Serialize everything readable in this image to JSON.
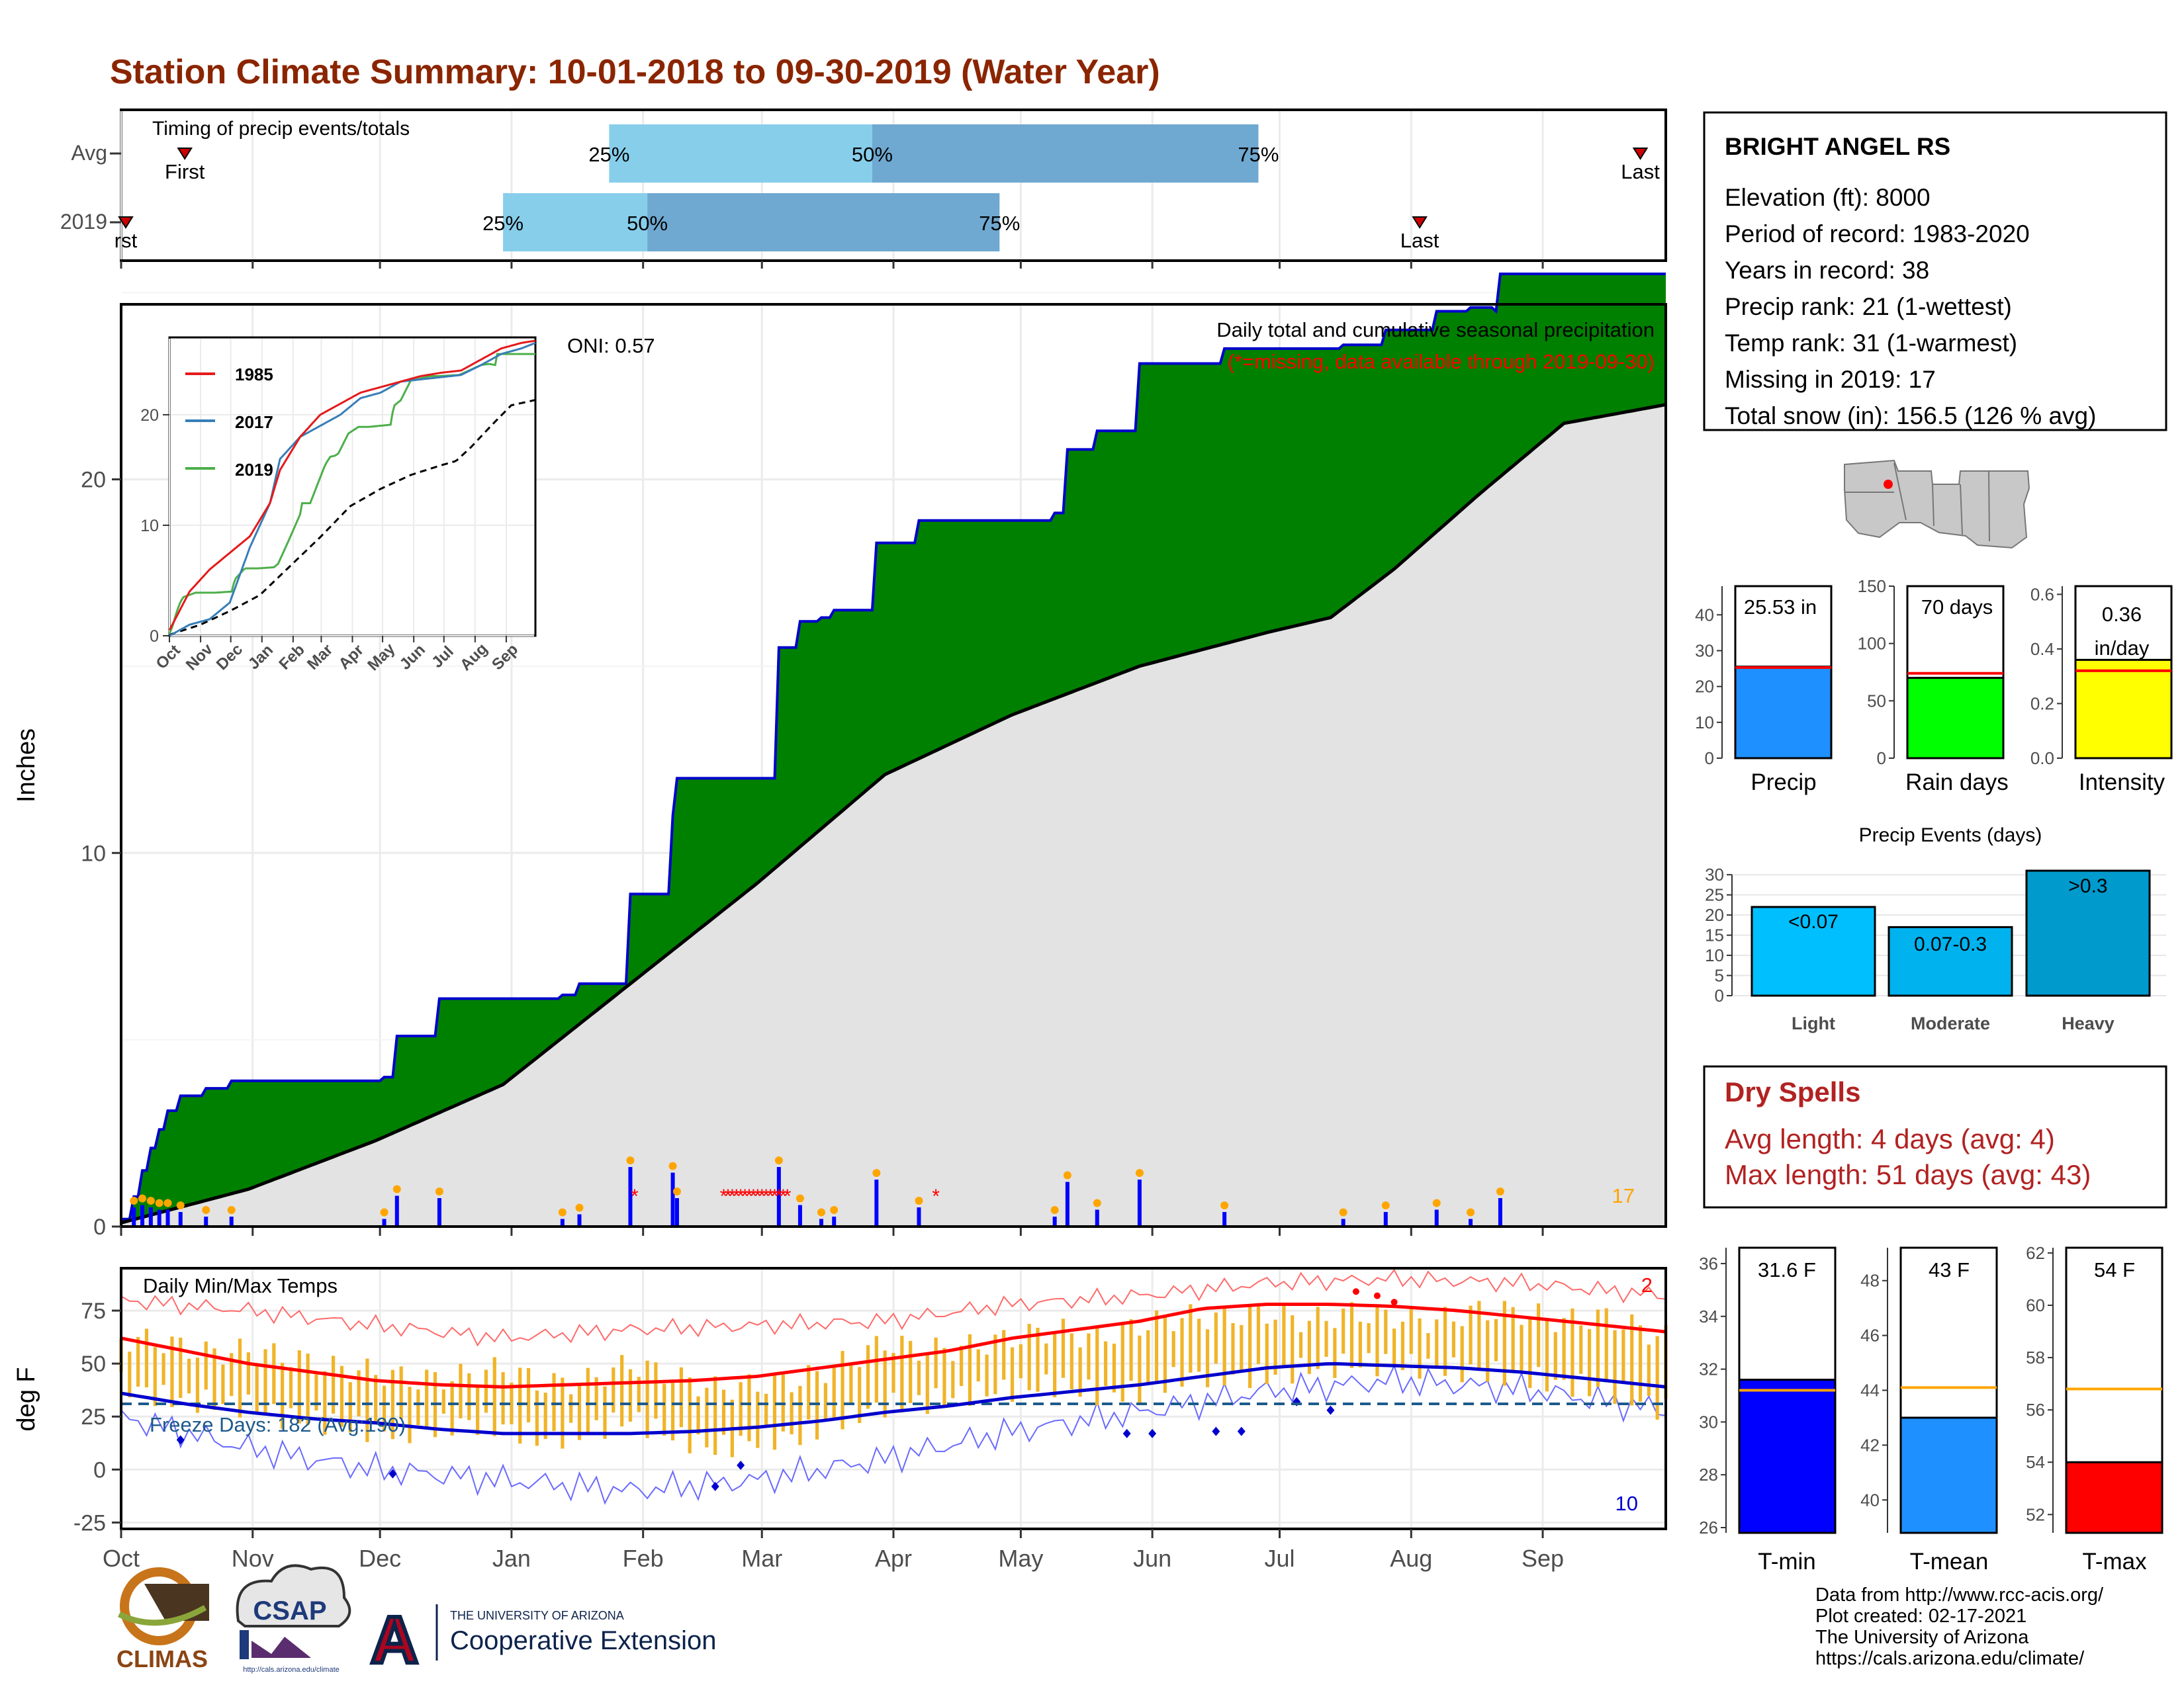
{
  "title": "Station Climate Summary: 10-01-2018 to 09-30-2019 (Water Year)",
  "colors": {
    "title": "#8b2500",
    "accent_red": "#ff0000",
    "green_fill": "#008000",
    "blue_line": "#0000cd",
    "gray_fill": "#e3e3e3",
    "orange": "#ffa500",
    "light_blue": "#87ceeb",
    "steel_blue": "#6fa8d0",
    "temp_bar": "#f0b429",
    "dry_spell_red": "#b22222"
  },
  "months": [
    "Oct",
    "Nov",
    "Dec",
    "Jan",
    "Feb",
    "Mar",
    "Apr",
    "May",
    "Jun",
    "Jul",
    "Aug",
    "Sep"
  ],
  "timing": {
    "title": "Timing of precip events/totals",
    "rows": [
      {
        "label": "Avg",
        "first_day": 15,
        "last_day": 358,
        "p25_day": 115,
        "p50_day": 177,
        "p75_day": 268,
        "first_label": "First",
        "last_label": "Last",
        "p25_label": "25%",
        "p50_label": "50%",
        "p75_label": "75%"
      },
      {
        "label": "2019",
        "first_day": 0,
        "last_day": 306,
        "p25_day": 90,
        "p50_day": 124,
        "p75_day": 207,
        "first_label": "rst",
        "last_label": "Last",
        "p25_label": "25%",
        "p50_label": "50%",
        "p75_label": "75%"
      }
    ]
  },
  "precip_panel": {
    "ylabel": "Inches",
    "title": "Daily total and cumulative seasonal precipitation",
    "subtitle": "(*=missing, data available through 2019-09-30)",
    "oni": "ONI: 0.57",
    "missing_count": "17",
    "yticks": [
      "0",
      "10",
      "20"
    ],
    "inset_legend": [
      "1985",
      "2017",
      "2019"
    ],
    "inset_yticks": [
      "0",
      "10",
      "20"
    ],
    "inset_xticks": [
      "Oct",
      "Nov",
      "Dec",
      "Jan",
      "Feb",
      "Mar",
      "Apr",
      "May",
      "Jun",
      "Jul",
      "Aug",
      "Sep"
    ]
  },
  "temp_panel": {
    "ylabel": "deg F",
    "title": "Daily Min/Max Temps",
    "freeze_label": "Freeze Days: 182 (Avg:190)",
    "count_max": "2",
    "count_min": "10",
    "yticks": [
      "-25",
      "0",
      "25",
      "50",
      "75"
    ]
  },
  "station": {
    "name": "BRIGHT ANGEL RS",
    "lines": [
      "Elevation (ft): 8000",
      "Period of record: 1983-2020",
      "Years in record: 38",
      "Precip rank: 21 (1-wettest)",
      "Temp rank: 31 (1-warmest)",
      "Missing in 2019: 17",
      "Total snow (in): 156.5 (126 % avg)"
    ]
  },
  "summary_bars": [
    {
      "label": "Precip",
      "value_text": "25.53 in",
      "value": 25.53,
      "avg": 25.3,
      "ymax": 48,
      "ticks": [
        "0",
        "10",
        "20",
        "30",
        "40"
      ],
      "color": "#1e90ff"
    },
    {
      "label": "Rain days",
      "value_text": "70 days",
      "value": 70,
      "avg": 74,
      "ymax": 150,
      "ticks": [
        "0",
        "50",
        "100",
        "150"
      ],
      "color": "#00ff00"
    },
    {
      "label": "Intensity",
      "value_text_1": "0.36",
      "value_text_2": "in/day",
      "value": 0.36,
      "avg": 0.32,
      "ymax": 0.63,
      "ticks": [
        "0.0",
        "0.2",
        "0.4",
        "0.6"
      ],
      "color": "#ffff00"
    }
  ],
  "events": {
    "title": "Precip Events (days)",
    "ticks": [
      "0",
      "5",
      "10",
      "15",
      "20",
      "25",
      "30"
    ],
    "bars": [
      {
        "label": "Light",
        "inner": "<0.07",
        "value": 22,
        "color": "#00bfff"
      },
      {
        "label": "Moderate",
        "inner": "0.07-0.3",
        "value": 17,
        "color": "#00b2ee"
      },
      {
        "label": "Heavy",
        "inner": ">0.3",
        "value": 31,
        "color": "#009acd"
      }
    ]
  },
  "dry_spells": {
    "title": "Dry Spells",
    "avg": "Avg length: 4 days (avg: 4)",
    "max": "Max length: 51 days (avg: 43)"
  },
  "temp_bars": [
    {
      "label": "T-min",
      "value_text": "31.6 F",
      "value": 31.6,
      "avg": 31.2,
      "ymin": 25.8,
      "ymax": 36.6,
      "ticks": [
        "26",
        "28",
        "30",
        "32",
        "34",
        "36"
      ],
      "color": "#0000ff"
    },
    {
      "label": "T-mean",
      "value_text": "43 F",
      "value": 43.0,
      "avg": 44.1,
      "ymin": 38.8,
      "ymax": 49.2,
      "ticks": [
        "40",
        "42",
        "44",
        "46",
        "48"
      ],
      "color": "#1e90ff"
    },
    {
      "label": "T-max",
      "value_text": "54 F",
      "value": 54.0,
      "avg": 56.8,
      "ymin": 51.3,
      "ymax": 62.2,
      "ticks": [
        "52",
        "54",
        "56",
        "58",
        "60",
        "62"
      ],
      "color": "#ff0000"
    }
  ],
  "credits": {
    "line1": "Data from http://www.rcc-acis.org/",
    "line2": "Plot created: 02-17-2021",
    "line3": "The University of Arizona",
    "line4": "https://cals.arizona.edu/climate/"
  },
  "logos": {
    "climas": "CLIMAS",
    "csap": "CSAP",
    "csap_url": "http://cals.arizona.edu/climate",
    "ua_small": "THE UNIVERSITY OF ARIZONA",
    "ua_big": "Cooperative Extension",
    "ua_letter": "A"
  },
  "chart_data": [
    {
      "type": "area",
      "title": "Daily total and cumulative seasonal precipitation",
      "ylabel": "Inches",
      "x_unit": "day of water year (0 = Oct 1)",
      "ylim": [
        0,
        25.5
      ],
      "series": [
        {
          "name": "2019",
          "x": [
            0,
            3,
            5,
            7,
            9,
            11,
            14,
            20,
            26,
            30,
            35,
            40,
            45,
            62,
            65,
            75,
            85,
            88,
            104,
            108,
            120,
            130,
            131,
            140,
            155,
            160,
            165,
            168,
            178,
            188,
            198,
            220,
            223,
            230,
            240,
            260,
            268,
            288,
            298,
            310,
            318,
            324,
            325,
            330,
            364
          ],
          "y": [
            0.2,
            0.8,
            1.5,
            2.1,
            2.6,
            3.1,
            3.5,
            3.7,
            3.9,
            3.9,
            3.9,
            3.9,
            3.9,
            4.0,
            5.1,
            6.1,
            6.1,
            6.1,
            6.2,
            6.5,
            8.9,
            11.0,
            12.0,
            12.0,
            15.5,
            16.2,
            16.3,
            16.5,
            18.3,
            18.9,
            18.9,
            19.1,
            20.8,
            21.3,
            23.1,
            23.5,
            23.5,
            23.6,
            24.0,
            24.5,
            24.6,
            24.5,
            25.5,
            25.5,
            25.5
          ]
        },
        {
          "name": "avg",
          "x": [
            0,
            30,
            60,
            90,
            120,
            150,
            180,
            210,
            240,
            270,
            285,
            300,
            320,
            340,
            364
          ],
          "y": [
            0.1,
            1.0,
            2.3,
            3.8,
            6.5,
            9.2,
            12.1,
            13.7,
            15.0,
            15.9,
            16.3,
            17.6,
            19.6,
            21.5,
            22.0
          ]
        }
      ]
    },
    {
      "type": "line",
      "title": "Daily Min/Max Temps",
      "ylabel": "deg F",
      "x_unit": "day of water year (0 = Oct 1)",
      "ylim": [
        -28,
        95
      ],
      "freeze_line": 31,
      "series": [
        {
          "name": "avg max",
          "x": [
            0,
            15,
            30,
            45,
            60,
            75,
            90,
            105,
            120,
            135,
            150,
            165,
            180,
            195,
            210,
            225,
            240,
            255,
            270,
            285,
            300,
            315,
            330,
            345,
            364
          ],
          "y": [
            62,
            56,
            50,
            46,
            42,
            40,
            39,
            40,
            41,
            42,
            44,
            48,
            52,
            56,
            62,
            66,
            70,
            76,
            78,
            78,
            77,
            75,
            72,
            69,
            65
          ]
        },
        {
          "name": "avg min",
          "x": [
            0,
            15,
            30,
            45,
            60,
            75,
            90,
            105,
            120,
            135,
            150,
            165,
            180,
            195,
            210,
            225,
            240,
            255,
            270,
            285,
            300,
            315,
            330,
            345,
            364
          ],
          "y": [
            36,
            31,
            27,
            24,
            22,
            19,
            17,
            17,
            17,
            18,
            20,
            23,
            27,
            30,
            34,
            37,
            40,
            44,
            48,
            50,
            49,
            48,
            46,
            43,
            39
          ]
        },
        {
          "name": "record max",
          "x": [
            0,
            30,
            60,
            90,
            120,
            150,
            180,
            210,
            240,
            270,
            300,
            330,
            364
          ],
          "y": [
            80,
            75,
            68,
            62,
            66,
            68,
            70,
            78,
            82,
            88,
            90,
            88,
            82
          ]
        },
        {
          "name": "record min",
          "x": [
            0,
            30,
            60,
            90,
            120,
            150,
            180,
            210,
            240,
            270,
            300,
            330,
            364
          ],
          "y": [
            25,
            10,
            0,
            -5,
            -10,
            -5,
            5,
            18,
            27,
            37,
            42,
            38,
            28
          ]
        },
        {
          "name": "2019 max",
          "x": [
            0,
            10,
            20,
            30,
            40,
            50,
            60,
            70,
            80,
            90,
            100,
            110,
            120,
            130,
            140,
            150,
            160,
            170,
            180,
            190,
            200,
            210,
            220,
            230,
            240,
            250,
            260,
            270,
            280,
            290,
            300,
            310,
            320,
            330,
            340,
            350,
            364
          ],
          "y": [
            62,
            60,
            55,
            56,
            53,
            48,
            46,
            42,
            44,
            48,
            40,
            42,
            50,
            44,
            38,
            40,
            42,
            50,
            60,
            56,
            58,
            62,
            66,
            62,
            68,
            72,
            72,
            74,
            70,
            74,
            72,
            70,
            75,
            74,
            70,
            72,
            62
          ]
        },
        {
          "name": "2019 min",
          "x": [
            0,
            10,
            20,
            30,
            40,
            50,
            60,
            70,
            80,
            90,
            100,
            110,
            120,
            130,
            140,
            150,
            160,
            170,
            180,
            190,
            200,
            210,
            220,
            230,
            240,
            250,
            260,
            270,
            280,
            290,
            300,
            310,
            320,
            330,
            340,
            350,
            364
          ],
          "y": [
            40,
            34,
            32,
            30,
            24,
            22,
            18,
            18,
            22,
            20,
            14,
            18,
            24,
            16,
            10,
            14,
            16,
            24,
            30,
            32,
            36,
            38,
            40,
            36,
            36,
            44,
            44,
            44,
            48,
            50,
            50,
            48,
            46,
            44,
            40,
            38,
            28
          ]
        }
      ]
    },
    {
      "type": "bar",
      "title": "Precip Events (days)",
      "categories": [
        "Light",
        "Moderate",
        "Heavy"
      ],
      "values": [
        22,
        17,
        31
      ],
      "ylim": [
        0,
        32
      ]
    }
  ]
}
